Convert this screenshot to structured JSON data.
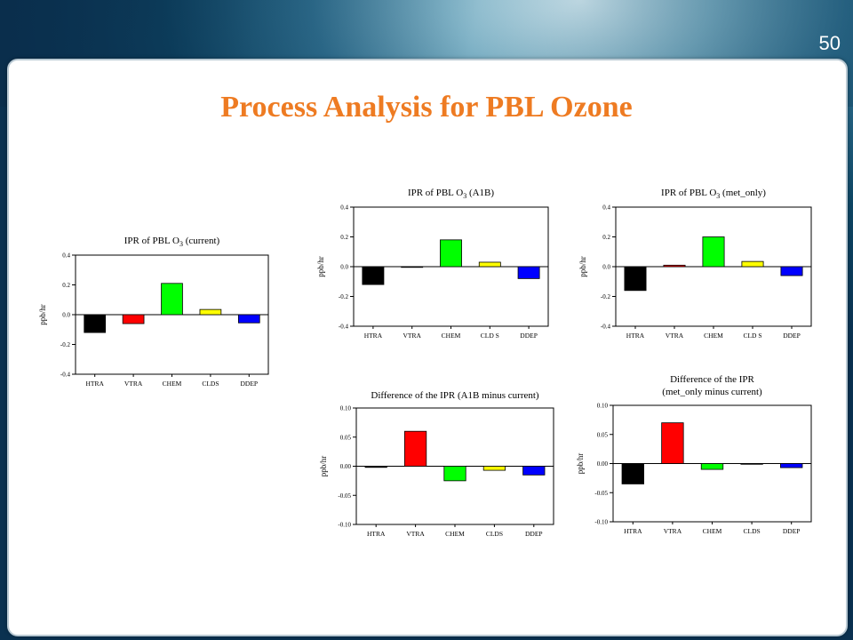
{
  "slide": {
    "number": "50",
    "title": "Process Analysis for PBL Ozone"
  },
  "colors": {
    "title": "#ee7b22",
    "bars": [
      "#000000",
      "#ff0000",
      "#00ff00",
      "#ffff00",
      "#0000ff"
    ]
  },
  "chart_data": [
    {
      "id": "current",
      "type": "bar",
      "title_prefix": "IPR of PBL O",
      "title_sub": "3",
      "title_suffix": " (current)",
      "ylabel": "ppb/hr",
      "categories": [
        "HTRA",
        "VTRA",
        "CHEM",
        "CLDS",
        "DDEP"
      ],
      "values": [
        -0.12,
        -0.06,
        0.21,
        0.035,
        -0.055
      ],
      "ylim": [
        -0.4,
        0.4
      ],
      "yticks": [
        "0.4",
        "0.2",
        "0.0",
        "-0.2",
        "-0.4"
      ],
      "yticks_values": [
        0.4,
        0.2,
        0.0,
        -0.2,
        -0.4
      ]
    },
    {
      "id": "a1b",
      "type": "bar",
      "title_prefix": "IPR of PBL O",
      "title_sub": "3",
      "title_suffix": " (A1B)",
      "ylabel": "ppb/hr",
      "categories": [
        "HTRA",
        "VTRA",
        "CHEM",
        "CLD S",
        "DDEP"
      ],
      "values": [
        -0.12,
        0.0,
        0.18,
        0.03,
        -0.08
      ],
      "ylim": [
        -0.4,
        0.4
      ],
      "yticks": [
        "0.4",
        "0.2",
        "0.0",
        "-0.2",
        "-0.4"
      ],
      "yticks_values": [
        0.4,
        0.2,
        0.0,
        -0.2,
        -0.4
      ]
    },
    {
      "id": "met_only",
      "type": "bar",
      "title_prefix": "IPR of PBL O",
      "title_sub": "3",
      "title_suffix": " (met_only)",
      "ylabel": "ppb/hr",
      "categories": [
        "HTRA",
        "VTRA",
        "CHEM",
        "CLD S",
        "DDEP"
      ],
      "values": [
        -0.16,
        0.01,
        0.2,
        0.035,
        -0.06
      ],
      "ylim": [
        -0.4,
        0.4
      ],
      "yticks": [
        "0.4",
        "0.2",
        "0.0",
        "-0.2",
        "-0.4"
      ],
      "yticks_values": [
        0.4,
        0.2,
        0.0,
        -0.2,
        -0.4
      ]
    },
    {
      "id": "diff_a1b",
      "type": "bar",
      "title_line1": "Difference of the IPR (A1B minus current)",
      "ylabel": "ppb/hr",
      "categories": [
        "HTRA",
        "VTRA",
        "CHEM",
        "CLDS",
        "DDEP"
      ],
      "values": [
        -0.002,
        0.06,
        -0.025,
        -0.007,
        -0.015
      ],
      "ylim": [
        -0.1,
        0.1
      ],
      "yticks": [
        "0.10",
        "0.05",
        "0.00",
        "-0.05",
        "-0.10"
      ],
      "yticks_values": [
        0.1,
        0.05,
        0.0,
        -0.05,
        -0.1
      ]
    },
    {
      "id": "diff_met",
      "type": "bar",
      "title_line1": "Difference of the IPR",
      "title_line2": "(met_only minus current)",
      "ylabel": "ppb/hr",
      "categories": [
        "HTRA",
        "VTRA",
        "CHEM",
        "CLDS",
        "DDEP"
      ],
      "values": [
        -0.035,
        0.07,
        -0.01,
        0.0,
        -0.007
      ],
      "ylim": [
        -0.1,
        0.1
      ],
      "yticks": [
        "0.10",
        "0.05",
        "0.00",
        "-0.05",
        "-0.10"
      ],
      "yticks_values": [
        0.1,
        0.05,
        0.0,
        -0.05,
        -0.1
      ]
    }
  ]
}
